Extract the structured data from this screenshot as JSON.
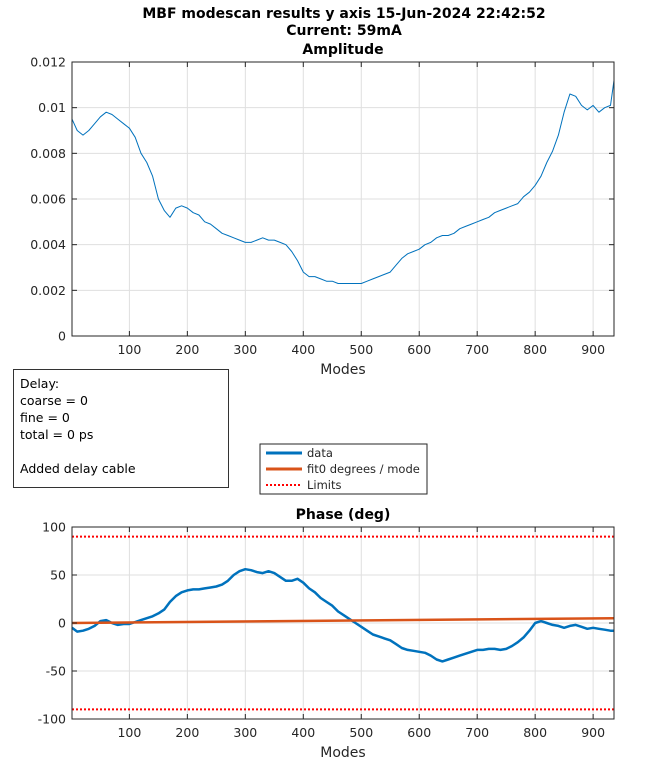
{
  "figure": {
    "title_line1": "MBF modescan results y axis 15-Jun-2024 22:42:52",
    "title_line2": "Current: 59mA"
  },
  "info_box": {
    "lines": [
      "Delay:",
      "coarse = 0",
      "fine = 0",
      "total = 0 ps",
      "",
      "Added delay cable"
    ]
  },
  "legend": {
    "entries": [
      {
        "label": "data",
        "color": "#0072bd",
        "style": "solid"
      },
      {
        "label": "fit0 degrees / mode",
        "color": "#d95319",
        "style": "solid"
      },
      {
        "label": "Limits",
        "color": "#ff0000",
        "style": "dotted"
      }
    ]
  },
  "chart_data": [
    {
      "type": "line",
      "title": "Amplitude",
      "xlabel": "Modes",
      "ylabel": "",
      "xlim": [
        1,
        936
      ],
      "ylim": [
        0,
        0.012
      ],
      "xticks": [
        100,
        200,
        300,
        400,
        500,
        600,
        700,
        800,
        900
      ],
      "yticks": [
        0,
        0.002,
        0.004,
        0.006,
        0.008,
        0.01,
        0.012
      ],
      "ytick_labels": [
        "0",
        "0.002",
        "0.004",
        "0.006",
        "0.008",
        "0.01",
        "0.012"
      ],
      "grid": true,
      "series": [
        {
          "color": "#0072bd",
          "x": [
            1,
            10,
            20,
            30,
            40,
            50,
            60,
            70,
            80,
            90,
            100,
            110,
            120,
            130,
            140,
            150,
            160,
            170,
            180,
            190,
            200,
            210,
            220,
            230,
            240,
            250,
            260,
            270,
            280,
            290,
            300,
            310,
            320,
            330,
            340,
            350,
            360,
            370,
            380,
            390,
            400,
            410,
            420,
            430,
            440,
            450,
            460,
            470,
            480,
            490,
            500,
            510,
            520,
            530,
            540,
            550,
            560,
            570,
            580,
            590,
            600,
            610,
            620,
            630,
            640,
            650,
            660,
            670,
            680,
            690,
            700,
            710,
            720,
            730,
            740,
            750,
            760,
            770,
            780,
            790,
            800,
            810,
            820,
            830,
            840,
            850,
            860,
            870,
            880,
            890,
            900,
            910,
            920,
            930,
            936
          ],
          "y": [
            0.0095,
            0.009,
            0.0088,
            0.009,
            0.0093,
            0.0096,
            0.0098,
            0.0097,
            0.0095,
            0.0093,
            0.0091,
            0.0087,
            0.008,
            0.0076,
            0.007,
            0.006,
            0.0055,
            0.0052,
            0.0056,
            0.0057,
            0.0056,
            0.0054,
            0.0053,
            0.005,
            0.0049,
            0.0047,
            0.0045,
            0.0044,
            0.0043,
            0.0042,
            0.0041,
            0.0041,
            0.0042,
            0.0043,
            0.0042,
            0.0042,
            0.0041,
            0.004,
            0.0037,
            0.0033,
            0.0028,
            0.0026,
            0.0026,
            0.0025,
            0.0024,
            0.0024,
            0.0023,
            0.0023,
            0.0023,
            0.0023,
            0.0023,
            0.0024,
            0.0025,
            0.0026,
            0.0027,
            0.0028,
            0.0031,
            0.0034,
            0.0036,
            0.0037,
            0.0038,
            0.004,
            0.0041,
            0.0043,
            0.0044,
            0.0044,
            0.0045,
            0.0047,
            0.0048,
            0.0049,
            0.005,
            0.0051,
            0.0052,
            0.0054,
            0.0055,
            0.0056,
            0.0057,
            0.0058,
            0.0061,
            0.0063,
            0.0066,
            0.007,
            0.0076,
            0.0081,
            0.0088,
            0.0098,
            0.0106,
            0.0105,
            0.0101,
            0.0099,
            0.0101,
            0.0098,
            0.01,
            0.0101,
            0.0112
          ]
        }
      ]
    },
    {
      "type": "line",
      "title": "Phase (deg)",
      "xlabel": "Modes",
      "ylabel": "",
      "xlim": [
        1,
        936
      ],
      "ylim": [
        -100,
        100
      ],
      "xticks": [
        100,
        200,
        300,
        400,
        500,
        600,
        700,
        800,
        900
      ],
      "yticks": [
        -100,
        -50,
        0,
        50,
        100
      ],
      "ytick_labels": [
        "-100",
        "-50",
        "0",
        "50",
        "100"
      ],
      "grid": true,
      "series": [
        {
          "name": "data",
          "color": "#0072bd",
          "x": [
            1,
            10,
            20,
            30,
            40,
            50,
            60,
            70,
            80,
            90,
            100,
            110,
            120,
            130,
            140,
            150,
            160,
            170,
            180,
            190,
            200,
            210,
            220,
            230,
            240,
            250,
            260,
            270,
            280,
            290,
            300,
            310,
            320,
            330,
            340,
            350,
            360,
            370,
            380,
            390,
            400,
            410,
            420,
            430,
            440,
            450,
            460,
            470,
            480,
            490,
            500,
            510,
            520,
            530,
            540,
            550,
            560,
            570,
            580,
            590,
            600,
            610,
            620,
            630,
            640,
            650,
            660,
            670,
            680,
            690,
            700,
            710,
            720,
            730,
            740,
            750,
            760,
            770,
            780,
            790,
            800,
            810,
            820,
            830,
            840,
            850,
            860,
            870,
            880,
            890,
            900,
            910,
            920,
            930,
            936
          ],
          "y": [
            -5,
            -9,
            -8,
            -6,
            -3,
            2,
            3,
            0,
            -2,
            -1,
            -1,
            1,
            3,
            5,
            7,
            10,
            14,
            22,
            28,
            32,
            34,
            35,
            35,
            36,
            37,
            38,
            40,
            44,
            50,
            54,
            56,
            55,
            53,
            52,
            54,
            52,
            48,
            44,
            44,
            46,
            42,
            36,
            32,
            26,
            22,
            18,
            12,
            8,
            4,
            0,
            -4,
            -8,
            -12,
            -14,
            -16,
            -18,
            -22,
            -26,
            -28,
            -29,
            -30,
            -31,
            -34,
            -38,
            -40,
            -38,
            -36,
            -34,
            -32,
            -30,
            -28,
            -28,
            -27,
            -27,
            -28,
            -27,
            -24,
            -20,
            -15,
            -8,
            0,
            2,
            0,
            -2,
            -3,
            -5,
            -3,
            -2,
            -4,
            -6,
            -5,
            -6,
            -7,
            -8,
            -8
          ]
        },
        {
          "name": "fit0 degrees / mode",
          "color": "#d95319",
          "x": [
            1,
            936
          ],
          "y": [
            0,
            5
          ]
        },
        {
          "name": "Limits",
          "color": "#ff0000",
          "x": [
            1,
            936
          ],
          "y": [
            90,
            90
          ]
        },
        {
          "name": "Limits",
          "color": "#ff0000",
          "x": [
            1,
            936
          ],
          "y": [
            -90,
            -90
          ]
        }
      ]
    }
  ]
}
